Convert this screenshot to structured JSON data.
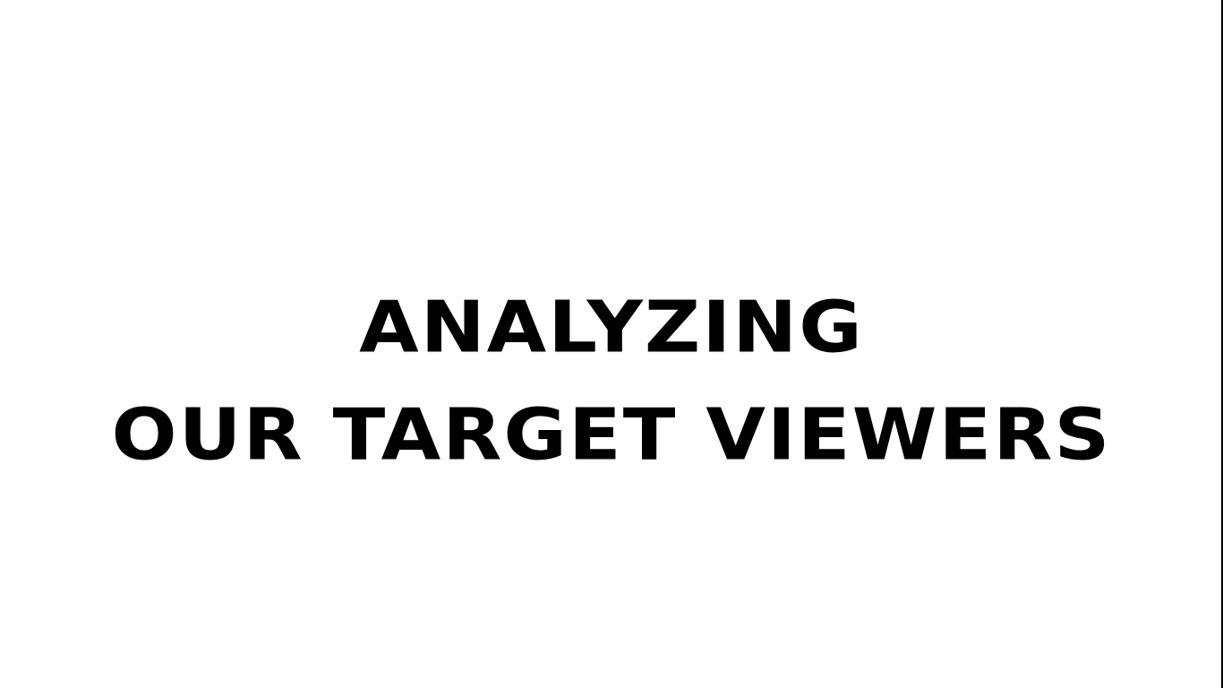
{
  "slide": {
    "title_line_1": "ANALYZING",
    "title_line_2": "OUR TARGET VIEWERS"
  },
  "colors": {
    "background": "#ffffff",
    "text": "#000000",
    "edge": "#000000"
  }
}
